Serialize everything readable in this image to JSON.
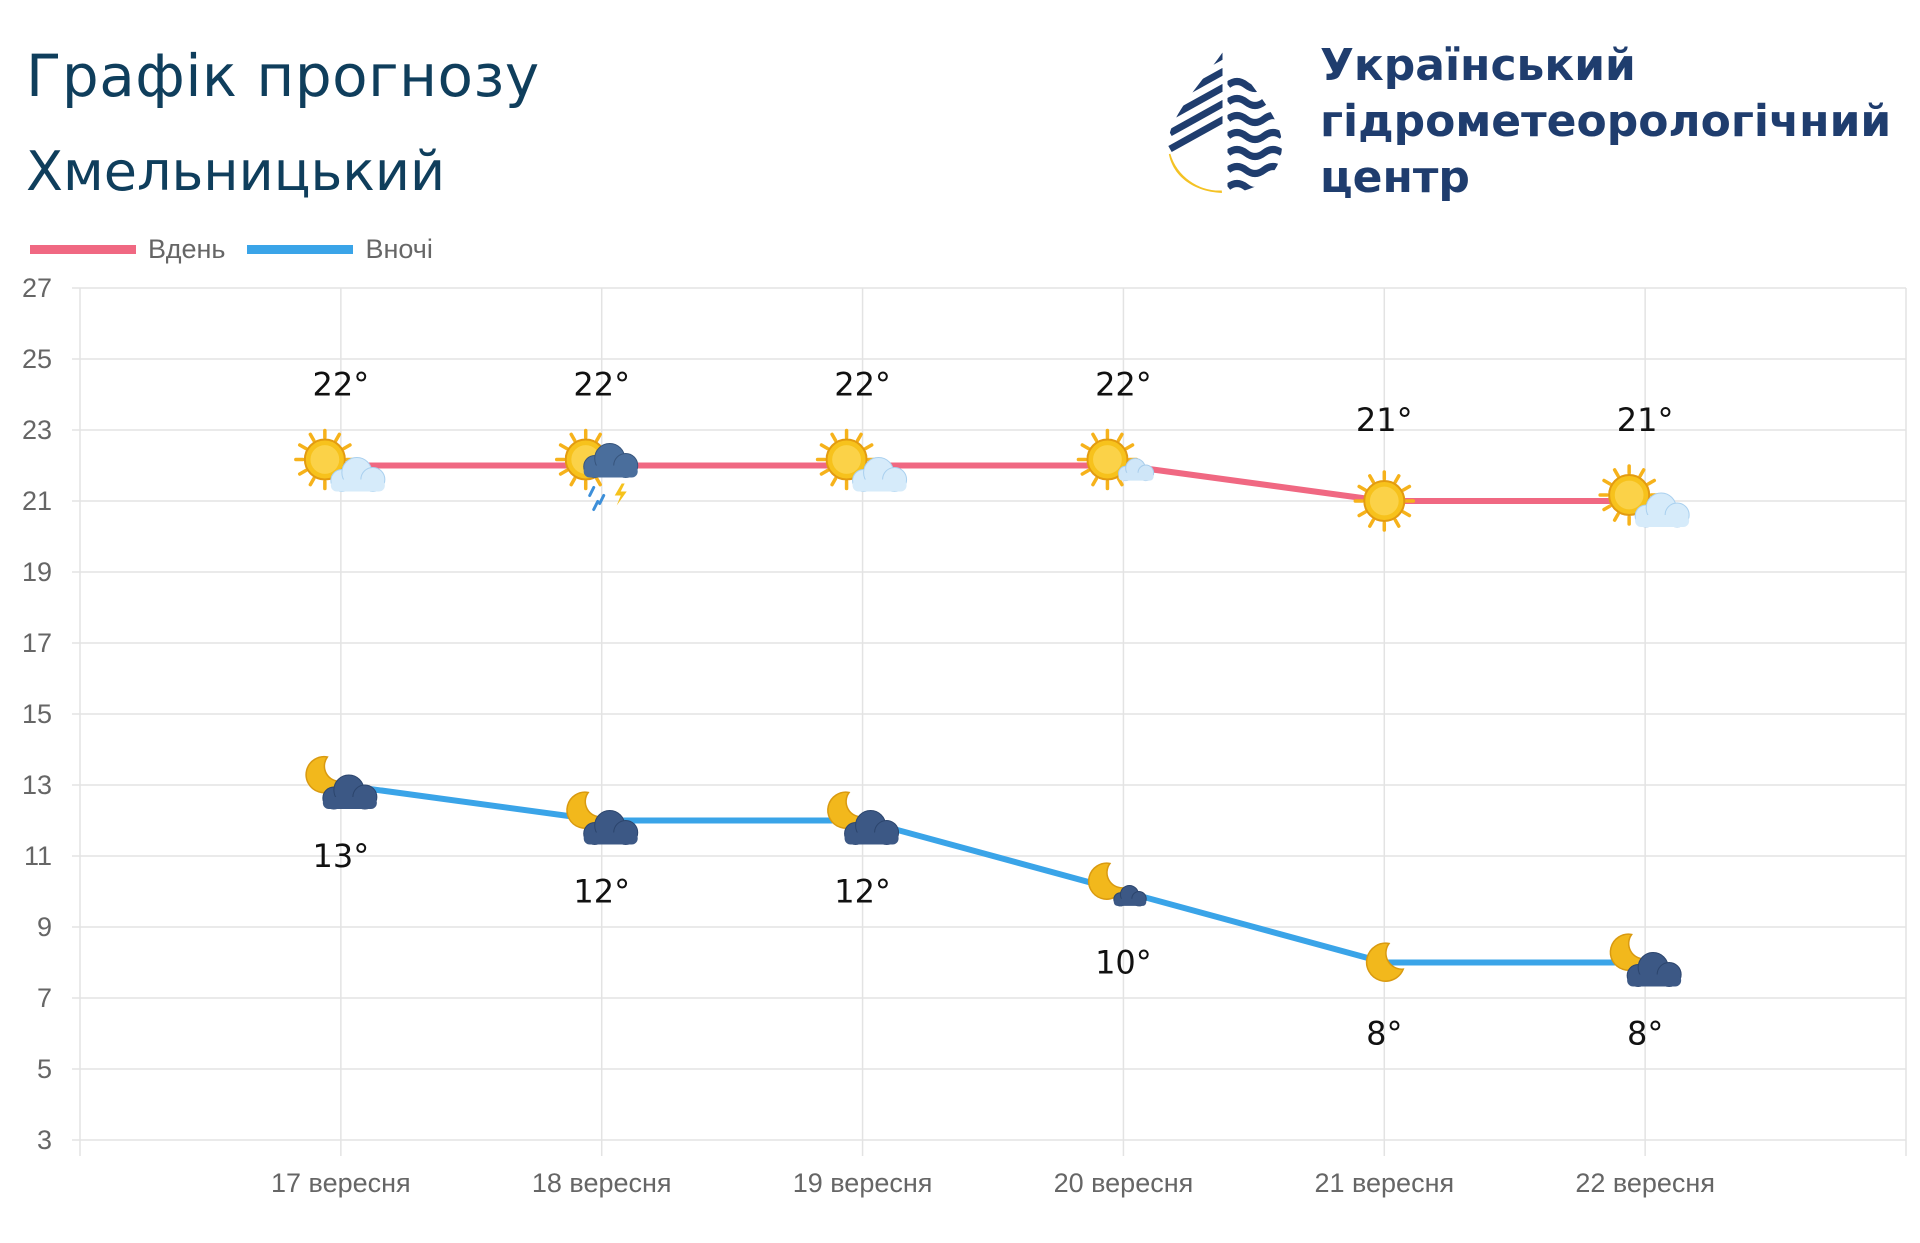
{
  "header": {
    "title": "Графік прогнозу",
    "city": "Хмельницький"
  },
  "org": {
    "line1": "Український",
    "line2": "гідрометеорологічний",
    "line3": "центр",
    "logo_icon": "water-drop-logo-icon",
    "colors": {
      "navy": "#1f3d6e",
      "yellow": "#f4c224"
    }
  },
  "chart_data": {
    "type": "line",
    "categories": [
      "17 вересня",
      "18 вересня",
      "19 вересня",
      "20 вересня",
      "21 вересня",
      "22 вересня"
    ],
    "series": [
      {
        "name": "Вдень",
        "color": "#f06882",
        "values": [
          22,
          22,
          22,
          22,
          21,
          21
        ],
        "labels": [
          "22°",
          "22°",
          "22°",
          "22°",
          "21°",
          "21°"
        ],
        "icons": [
          "sun-cloud-icon",
          "sun-storm-icon",
          "sun-cloud-icon",
          "sun-small-cloud-icon",
          "sun-icon",
          "sun-cloud-icon"
        ]
      },
      {
        "name": "Вночі",
        "color": "#3aa4e8",
        "values": [
          13,
          12,
          12,
          10,
          8,
          8
        ],
        "labels": [
          "13°",
          "12°",
          "12°",
          "10°",
          "8°",
          "8°"
        ],
        "icons": [
          "moon-cloud-icon",
          "moon-cloud-icon",
          "moon-cloud-icon",
          "moon-small-cloud-icon",
          "moon-icon",
          "moon-cloud-icon"
        ]
      }
    ],
    "yticks": [
      "27",
      "25",
      "23",
      "21",
      "19",
      "17",
      "15",
      "13",
      "11",
      "9",
      "7",
      "5",
      "3"
    ],
    "ylim": [
      3,
      27
    ],
    "grid": true,
    "legend": "top-left"
  }
}
